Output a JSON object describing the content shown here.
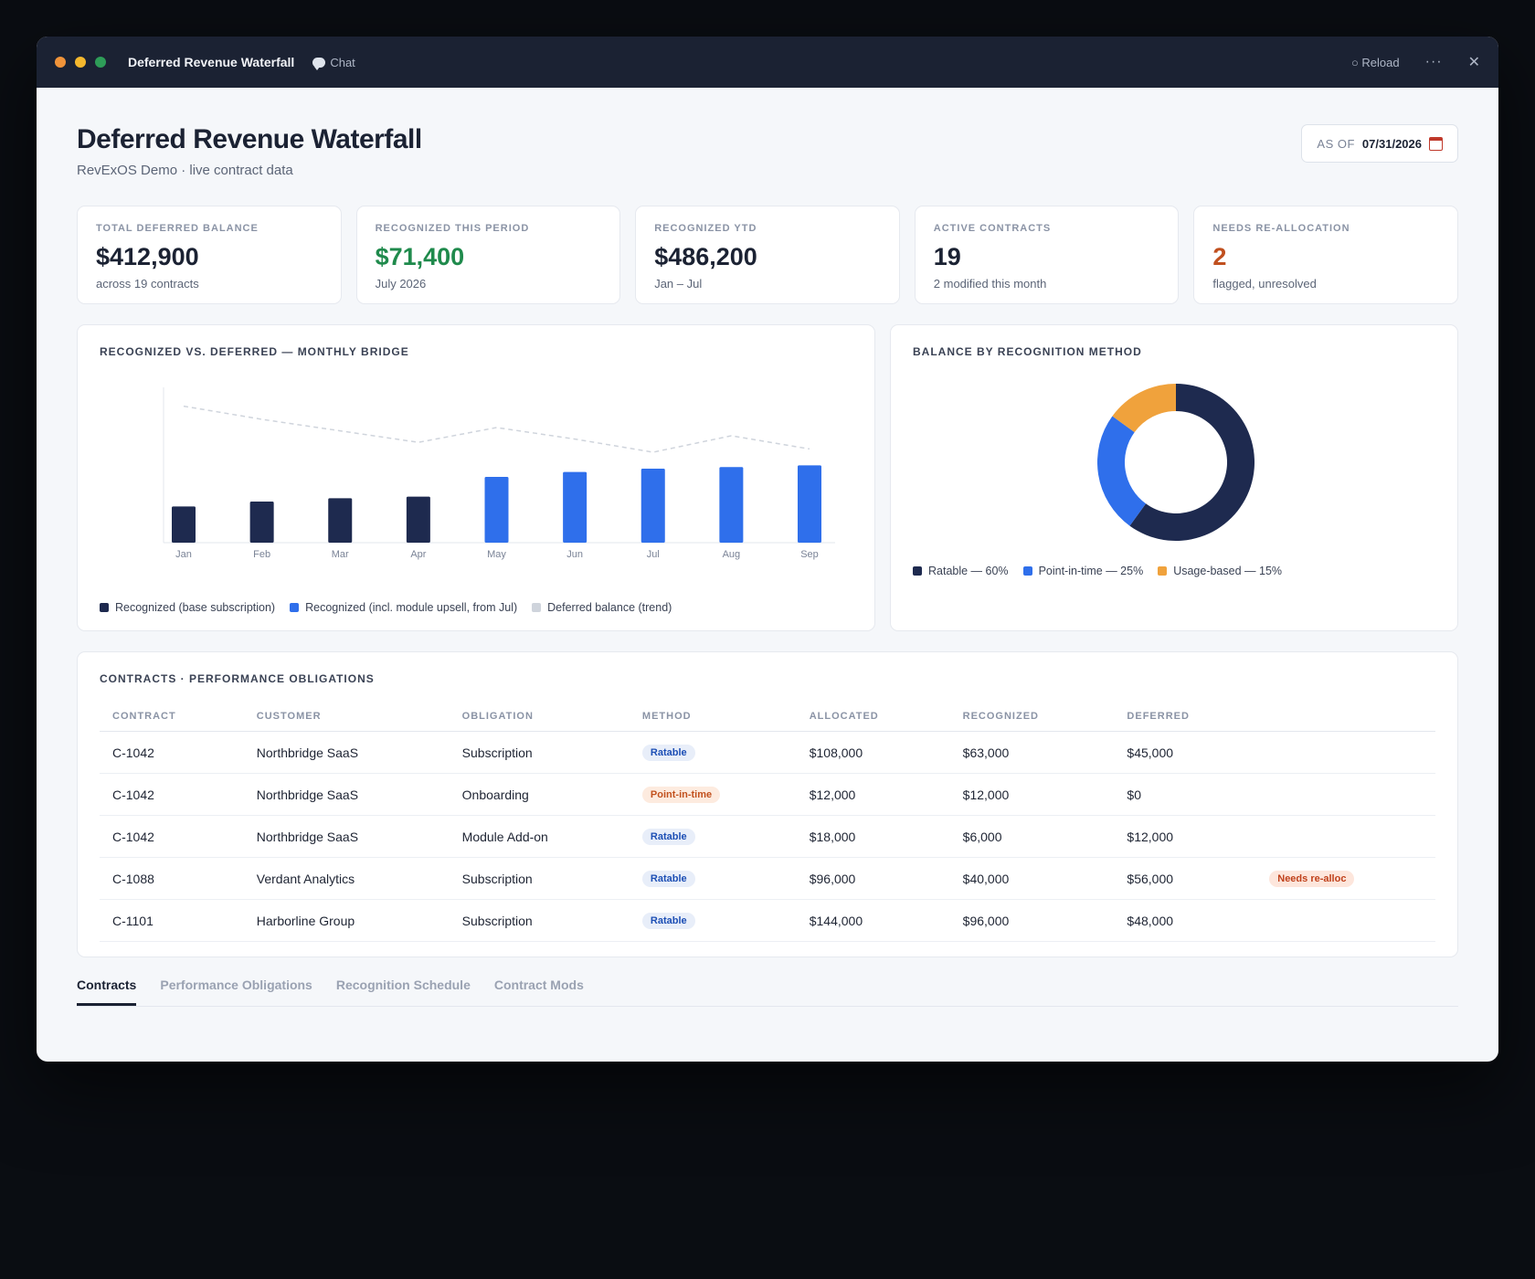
{
  "window": {
    "title": "Deferred Revenue Waterfall",
    "chat_label": "Chat",
    "reload_label": "○ Reload",
    "more_label": "···",
    "close_label": "✕",
    "dots": [
      "#f0943a",
      "#f5b82e",
      "#2e9d58"
    ]
  },
  "header": {
    "title": "Deferred Revenue Waterfall",
    "subtitle": "RevExOS Demo · live contract data",
    "asof_label": "AS OF",
    "asof_date": "07/31/2026"
  },
  "kpis": [
    {
      "label": "Total Deferred Balance",
      "value": "$412,900",
      "sub": "across 19 contracts",
      "color": "#1b2233"
    },
    {
      "label": "Recognized This Period",
      "value": "$71,400",
      "sub": "July 2026",
      "color": "#1f8a4c"
    },
    {
      "label": "Recognized YTD",
      "value": "$486,200",
      "sub": "Jan – Jul",
      "color": "#1b2233"
    },
    {
      "label": "Active Contracts",
      "value": "19",
      "sub": "2 modified this month",
      "color": "#1b2233"
    },
    {
      "label": "Needs Re-allocation",
      "value": "2",
      "sub": "flagged, unresolved",
      "color": "#c0501f"
    }
  ],
  "bridge_chart": {
    "title": "Recognized vs. Deferred — Monthly Bridge",
    "legend": [
      {
        "label": "Recognized (base subscription)",
        "color": "#1e2a4f"
      },
      {
        "label": "Recognized (incl. module upsell, from Jul)",
        "color": "#2f6feb"
      },
      {
        "label": "Deferred balance (trend)",
        "color": "#cfd4dc"
      }
    ]
  },
  "donut_chart": {
    "title": "Balance by Recognition Method",
    "legend": [
      {
        "label": "Ratable — 60%",
        "color": "#1e2a4f"
      },
      {
        "label": "Point-in-time — 25%",
        "color": "#2f6feb"
      },
      {
        "label": "Usage-based — 15%",
        "color": "#f0a23c"
      }
    ]
  },
  "chart_data": [
    {
      "type": "bar",
      "title": "Recognized vs. Deferred — Monthly Bridge",
      "categories": [
        "Jan",
        "Feb",
        "Mar",
        "Apr",
        "May",
        "Jun",
        "Jul",
        "Aug",
        "Sep"
      ],
      "series": [
        {
          "name": "Recognized (base subscription)",
          "color": "#1e2a4f",
          "values": [
            22,
            25,
            27,
            28,
            null,
            null,
            null,
            null,
            null
          ]
        },
        {
          "name": "Recognized (incl. module upsell, from Jul)",
          "color": "#2f6feb",
          "values": [
            null,
            null,
            null,
            null,
            40,
            43,
            45,
            46,
            47
          ]
        },
        {
          "name": "Deferred balance (trend)",
          "color": "#cfd4dc",
          "type": "line",
          "values": [
            83,
            75,
            68,
            61,
            70,
            63,
            55,
            65,
            57
          ]
        }
      ],
      "ylim": [
        0,
        100
      ],
      "grid": false
    },
    {
      "type": "pie",
      "title": "Balance by Recognition Method",
      "donut": true,
      "categories": [
        "Ratable",
        "Point-in-time",
        "Usage-based"
      ],
      "values": [
        60,
        25,
        15
      ],
      "colors": [
        "#1e2a4f",
        "#2f6feb",
        "#f0a23c"
      ]
    }
  ],
  "table": {
    "title": "Contracts · Performance Obligations",
    "columns": [
      "Contract",
      "Customer",
      "Obligation",
      "Method",
      "Allocated",
      "Recognized",
      "Deferred",
      ""
    ],
    "rows": [
      {
        "contract": "C-1042",
        "customer": "Northbridge SaaS",
        "obligation": "Subscription",
        "method": "Ratable",
        "method_kind": "ratable",
        "allocated": "$108,000",
        "recognized": "$63,000",
        "deferred": "$45,000",
        "flag": ""
      },
      {
        "contract": "C-1042",
        "customer": "Northbridge SaaS",
        "obligation": "Onboarding",
        "method": "Point-in-time",
        "method_kind": "pit",
        "allocated": "$12,000",
        "recognized": "$12,000",
        "deferred": "$0",
        "flag": ""
      },
      {
        "contract": "C-1042",
        "customer": "Northbridge SaaS",
        "obligation": "Module Add-on",
        "method": "Ratable",
        "method_kind": "ratable",
        "allocated": "$18,000",
        "recognized": "$6,000",
        "deferred": "$12,000",
        "flag": ""
      },
      {
        "contract": "C-1088",
        "customer": "Verdant Analytics",
        "obligation": "Subscription",
        "method": "Ratable",
        "method_kind": "ratable",
        "allocated": "$96,000",
        "recognized": "$40,000",
        "deferred": "$56,000",
        "flag": "Needs re-alloc"
      },
      {
        "contract": "C-1101",
        "customer": "Harborline Group",
        "obligation": "Subscription",
        "method": "Ratable",
        "method_kind": "ratable",
        "allocated": "$144,000",
        "recognized": "$96,000",
        "deferred": "$48,000",
        "flag": ""
      }
    ]
  },
  "tabs": [
    {
      "label": "Contracts",
      "active": true
    },
    {
      "label": "Performance Obligations",
      "active": false
    },
    {
      "label": "Recognition Schedule",
      "active": false
    },
    {
      "label": "Contract Mods",
      "active": false
    }
  ]
}
